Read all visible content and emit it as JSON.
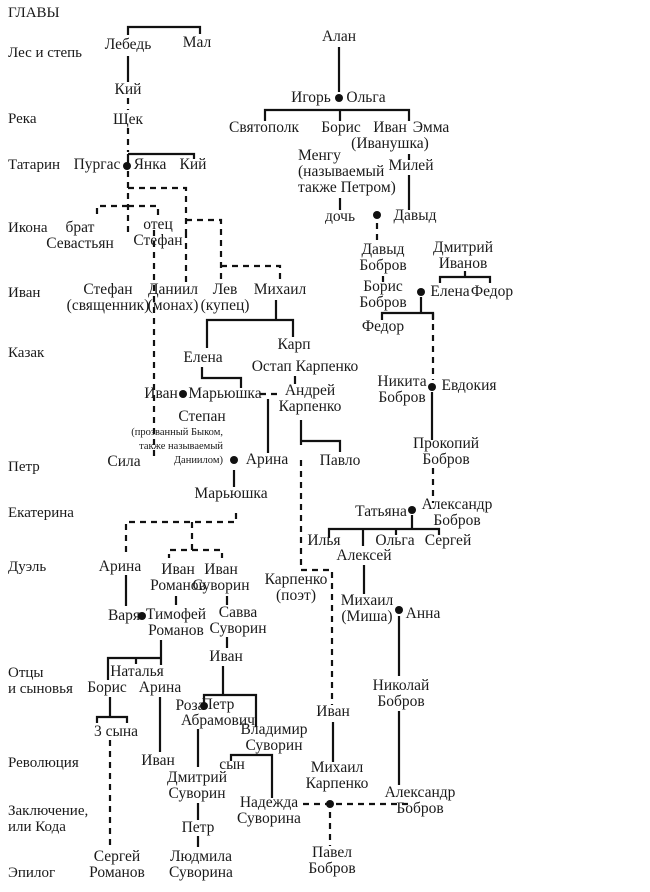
{
  "header": {
    "title": "ГЛАВЫ"
  },
  "chapters": [
    [
      "Лес и степь"
    ],
    [
      "Река"
    ],
    [
      "Татарин"
    ],
    [
      "Икона"
    ],
    [
      "Иван"
    ],
    [
      "Казак"
    ],
    [
      "Петр"
    ],
    [
      "Екатерина"
    ],
    [
      "Дуэль"
    ],
    [
      "Отцы",
      "и сыновья"
    ],
    [
      "Революция"
    ],
    [
      "Заключение,",
      "или Кода"
    ],
    [
      "Эпилог"
    ]
  ],
  "people": [
    [
      "Лебедь"
    ],
    [
      "Мал"
    ],
    [
      "Кий"
    ],
    [
      "Щек"
    ],
    [
      "Пургас"
    ],
    [
      "Янка"
    ],
    [
      "Кий"
    ],
    [
      "Алан"
    ],
    [
      "Игорь"
    ],
    [
      "Ольга"
    ],
    [
      "Святополк"
    ],
    [
      "Борис"
    ],
    [
      "Иван",
      "(Иванушка)"
    ],
    [
      "Эмма"
    ],
    [
      "Менгу",
      "(называемый",
      "также Петром)"
    ],
    [
      "Милей"
    ],
    [
      "дочь"
    ],
    [
      "Давыд"
    ],
    [
      "Давыд",
      "Бобров"
    ],
    [
      "Дмитрий",
      "Иванов"
    ],
    [
      "Борис",
      "Бобров"
    ],
    [
      "Елена"
    ],
    [
      "Федор"
    ],
    [
      "Федор"
    ],
    [
      "брат",
      "Севастьян"
    ],
    [
      "отец",
      "Стефан"
    ],
    [
      "Стефан",
      "(священник)"
    ],
    [
      "Даниил",
      "(монах)"
    ],
    [
      "Лев",
      "(купец)"
    ],
    [
      "Михаил"
    ],
    [
      "Карп"
    ],
    [
      "Елена"
    ],
    [
      "Остап Карпенко"
    ],
    [
      "Иван"
    ],
    [
      "Марьюшка"
    ],
    [
      "Андрей",
      "Карпенко"
    ],
    [
      "Степан"
    ],
    [
      "(прозванный Быком,",
      "также называемый",
      "Даниилом)"
    ],
    [
      "Арина"
    ],
    [
      "Сила"
    ],
    [
      "Павло"
    ],
    [
      "Марьюшка"
    ],
    [
      "Никита",
      "Бобров"
    ],
    [
      "Евдокия"
    ],
    [
      "Прокопий",
      "Бобров"
    ],
    [
      "Татьяна"
    ],
    [
      "Александр",
      "Бобров"
    ],
    [
      "Илья"
    ],
    [
      "Алексей"
    ],
    [
      "Ольга"
    ],
    [
      "Сергей"
    ],
    [
      "Арина"
    ],
    [
      "Иван",
      "Романов"
    ],
    [
      "Иван",
      "Суворин"
    ],
    [
      "Карпенко",
      "(поэт)"
    ],
    [
      "Михаил",
      "(Миша)"
    ],
    [
      "Анна"
    ],
    [
      "Варя"
    ],
    [
      "Тимофей",
      "Романов"
    ],
    [
      "Савва",
      "Суворин"
    ],
    [
      "Иван"
    ],
    [
      "Наталья"
    ],
    [
      "Борис"
    ],
    [
      "Арина"
    ],
    [
      "Роза"
    ],
    [
      "Петр",
      "Абрамович"
    ],
    [
      "Владимир",
      "Суворин"
    ],
    [
      "3 сына"
    ],
    [
      "Иван"
    ],
    [
      "Николай",
      "Бобров"
    ],
    [
      "Иван"
    ],
    [
      "сын"
    ],
    [
      "Дмитрий",
      "Суворин"
    ],
    [
      "Михаил",
      "Карпенко"
    ],
    [
      "Александр",
      "Бобров"
    ],
    [
      "Надежда",
      "Суворина"
    ],
    [
      "Петр"
    ],
    [
      "Сергей",
      "Романов"
    ],
    [
      "Людмила",
      "Суворина"
    ],
    [
      "Павел",
      "Бобров"
    ]
  ]
}
